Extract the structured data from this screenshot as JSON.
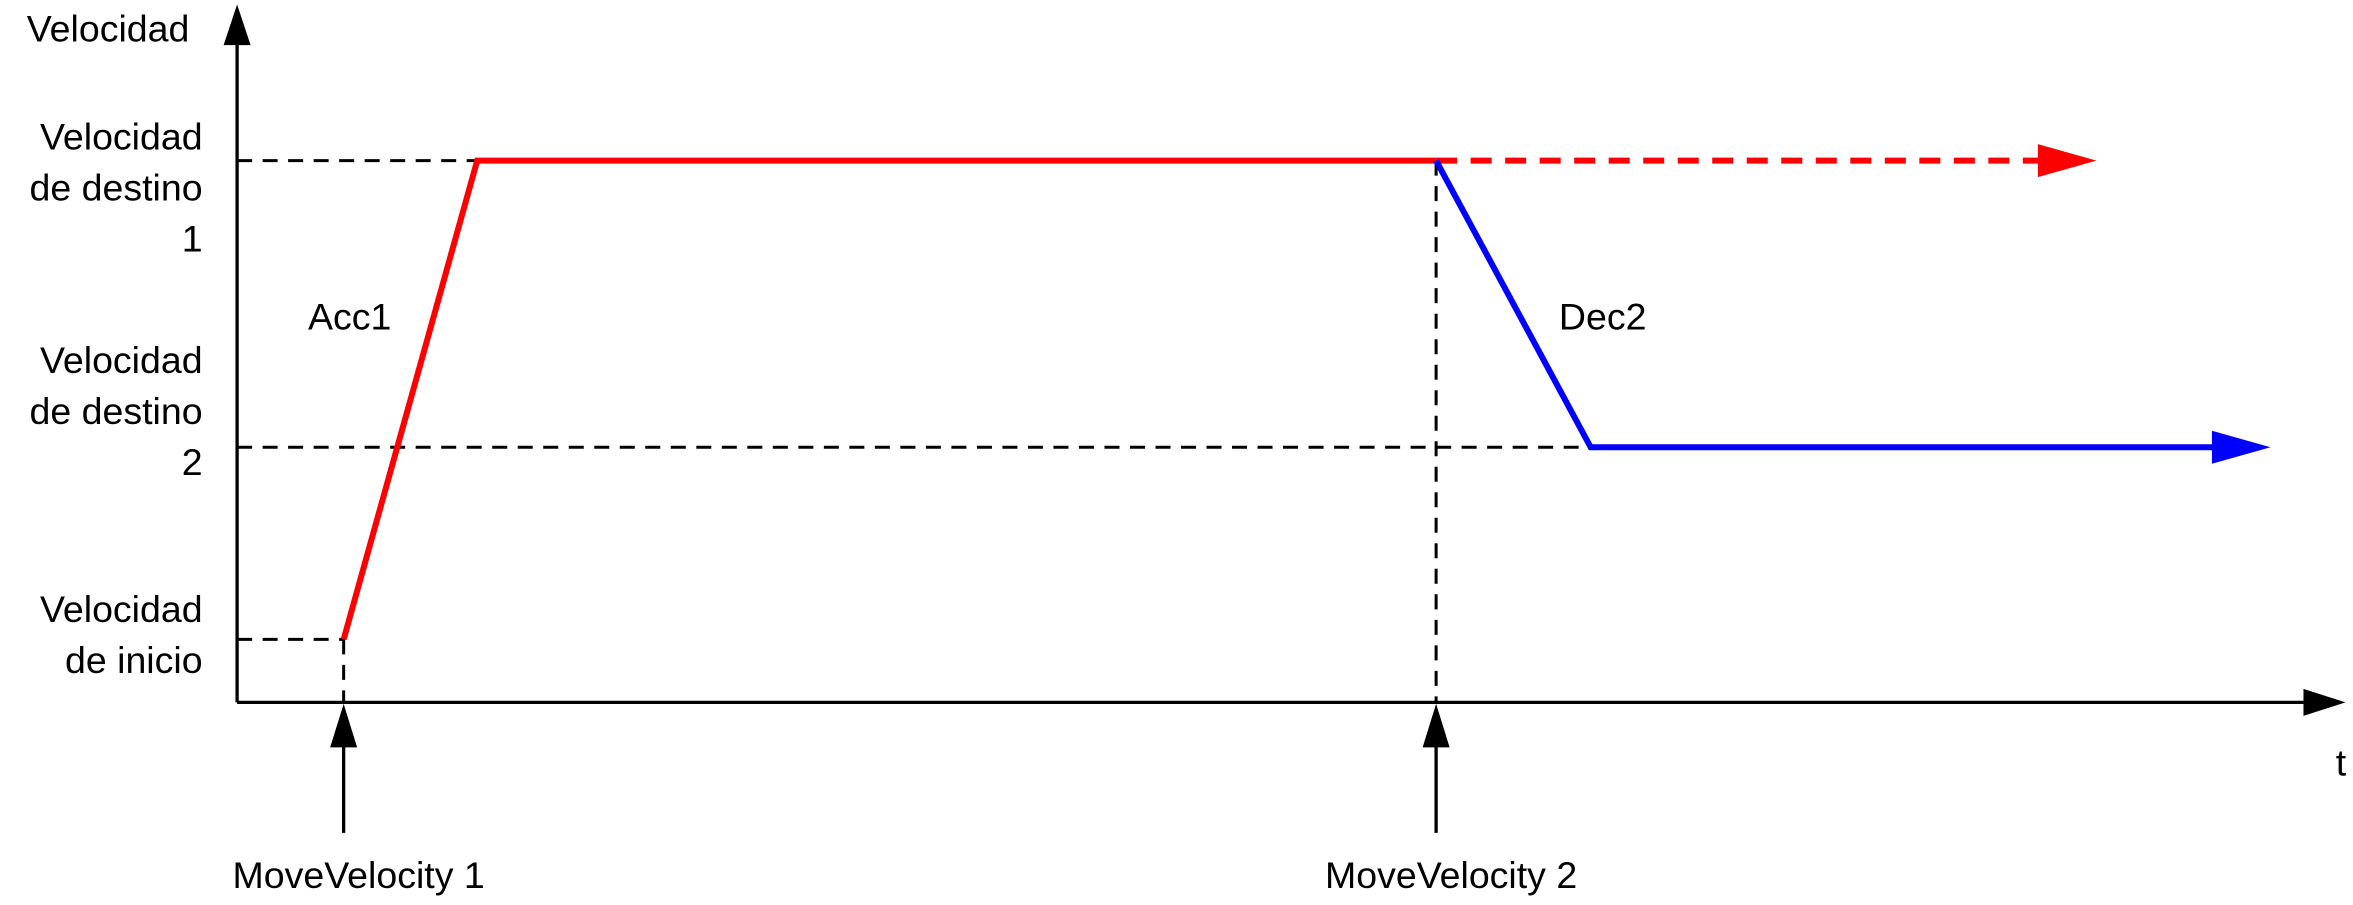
{
  "y_axis_label": "Velocidad",
  "x_axis_label": "t",
  "levels": [
    {
      "lines": [
        "Velocidad",
        "de destino",
        "1"
      ]
    },
    {
      "lines": [
        "Velocidad",
        "de destino",
        "2"
      ]
    },
    {
      "lines": [
        "Velocidad",
        "de inicio"
      ]
    }
  ],
  "annotations": [
    "Acc1",
    "Dec2"
  ],
  "events": [
    "MoveVelocity 1",
    "MoveVelocity 2"
  ]
}
